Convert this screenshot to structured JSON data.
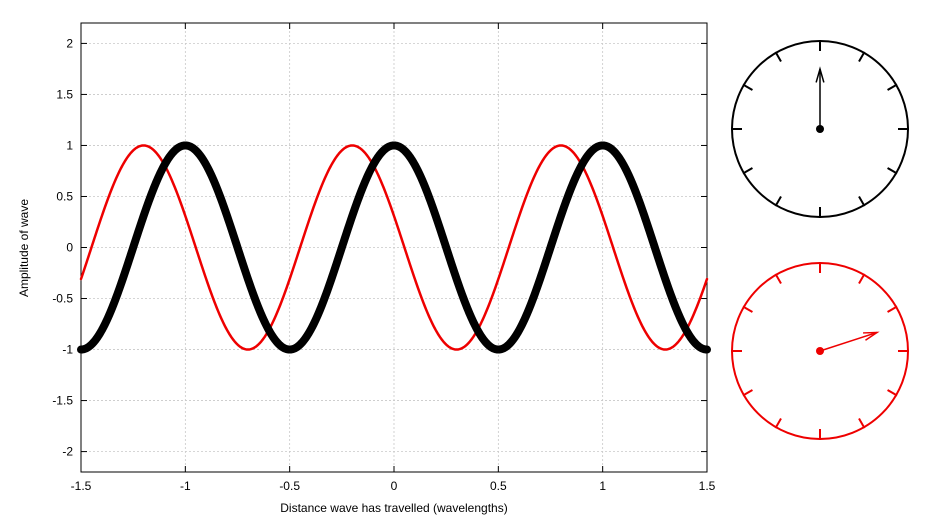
{
  "chart_data": {
    "type": "line",
    "xlabel": "Distance wave has travelled (wavelengths)",
    "ylabel": "Amplitude of wave",
    "xlim": [
      -1.5,
      1.5
    ],
    "ylim": [
      -2.2,
      2.2
    ],
    "x_ticks": [
      -1.5,
      -1,
      -0.5,
      0,
      0.5,
      1,
      1.5
    ],
    "y_ticks": [
      2,
      1.5,
      1,
      0.5,
      0,
      -0.5,
      -1,
      -1.5,
      -2
    ],
    "x_tick_labels": [
      "-1.5",
      "-1",
      "-0.5",
      "0",
      "0.5",
      "1",
      "1.5"
    ],
    "y_tick_labels": [
      "2",
      "1.5",
      "1",
      "0.5",
      "0",
      "-0.5",
      "-1",
      "-1.5",
      "-2"
    ],
    "grid": true,
    "series": [
      {
        "color": "#000000",
        "wavelength": 1,
        "phase_shift": 0,
        "amplitude": 1,
        "style": "thick"
      },
      {
        "color": "#ee0000",
        "wavelength": 1,
        "phase_shift": -0.2,
        "amplitude": 1,
        "style": "thin"
      }
    ],
    "clocks": [
      {
        "color": "#000000",
        "hand_angle_deg": 0,
        "tick_count": 12
      },
      {
        "color": "#ee0000",
        "hand_angle_deg": 72,
        "tick_count": 12
      }
    ]
  }
}
